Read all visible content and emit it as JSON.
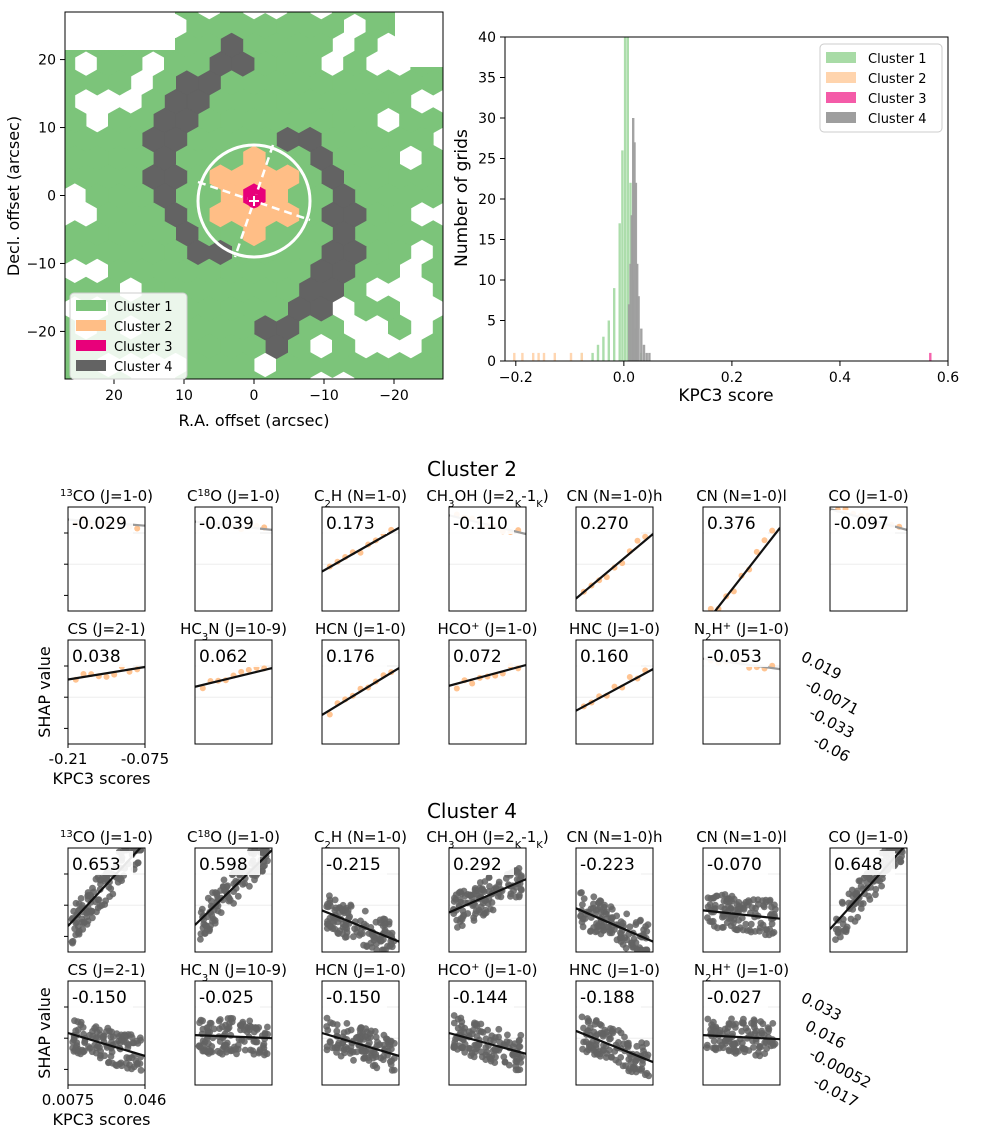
{
  "chart_data": [
    {
      "type": "map",
      "xlabel": "R.A. offset (arcsec)",
      "ylabel": "Decl. offset (arcsec)",
      "xlim": [
        27,
        -27
      ],
      "ylim": [
        -27,
        27
      ],
      "xticks": [
        "20",
        "10",
        "0",
        "−10",
        "−20"
      ],
      "yticks": [
        "20",
        "10",
        "0",
        "−10",
        "−20"
      ],
      "legend": {
        "position": "lower-left",
        "entries": [
          {
            "label": "Cluster 1",
            "color": "#7cc47a"
          },
          {
            "label": "Cluster 2",
            "color": "#ffbe86"
          },
          {
            "label": "Cluster 3",
            "color": "#e8007a"
          },
          {
            "label": "Cluster 4",
            "color": "#636363"
          }
        ]
      }
    },
    {
      "type": "histogram",
      "xlabel": "KPC3 score",
      "ylabel": "Number of grids",
      "xlim": [
        -0.22,
        0.6
      ],
      "ylim": [
        0,
        40
      ],
      "xticks": [
        "−0.2",
        "0.0",
        "0.2",
        "0.4",
        "0.6"
      ],
      "yticks": [
        "0",
        "5",
        "10",
        "15",
        "20",
        "25",
        "30",
        "35",
        "40"
      ],
      "legend": {
        "position": "upper-right",
        "entries": [
          {
            "label": "Cluster 1",
            "color": "#a8dba6"
          },
          {
            "label": "Cluster 2",
            "color": "#ffd4ad"
          },
          {
            "label": "Cluster 3",
            "color": "#f45ba8"
          },
          {
            "label": "Cluster 4",
            "color": "#9e9e9e"
          }
        ]
      },
      "series": [
        {
          "name": "Cluster 1",
          "color": "#a8dba6",
          "bins": [
            [
              -0.08,
              1
            ],
            [
              -0.06,
              1
            ],
            [
              -0.05,
              2
            ],
            [
              -0.04,
              3
            ],
            [
              -0.03,
              5
            ],
            [
              -0.02,
              9
            ],
            [
              -0.01,
              17
            ],
            [
              -0.005,
              26
            ],
            [
              0.0,
              40
            ],
            [
              0.005,
              40
            ],
            [
              0.01,
              22
            ],
            [
              0.015,
              10
            ],
            [
              0.02,
              4
            ],
            [
              0.03,
              1
            ]
          ]
        },
        {
          "name": "Cluster 2",
          "color": "#ffd4ad",
          "bins": [
            [
              -0.205,
              1
            ],
            [
              -0.19,
              1
            ],
            [
              -0.17,
              1
            ],
            [
              -0.16,
              1
            ],
            [
              -0.15,
              1
            ],
            [
              -0.13,
              1
            ],
            [
              -0.1,
              1
            ],
            [
              -0.08,
              1
            ]
          ]
        },
        {
          "name": "Cluster 3",
          "color": "#f45ba8",
          "bins": [
            [
              0.565,
              1
            ]
          ]
        },
        {
          "name": "Cluster 4",
          "color": "#9e9e9e",
          "bins": [
            [
              0.0075,
              7
            ],
            [
              0.01,
              12
            ],
            [
              0.0125,
              18
            ],
            [
              0.015,
              30
            ],
            [
              0.0175,
              27
            ],
            [
              0.02,
              22
            ],
            [
              0.0225,
              12
            ],
            [
              0.025,
              8
            ],
            [
              0.03,
              4
            ],
            [
              0.035,
              2
            ],
            [
              0.04,
              1
            ],
            [
              0.045,
              1
            ]
          ]
        }
      ]
    },
    {
      "type": "scatter-grid",
      "title": "Cluster 2",
      "point_color": "#ffbe86",
      "xlabel": "KPC3 scores",
      "ylabel": "SHAP value",
      "x_ticks": [
        "-0.21",
        "-0.075"
      ],
      "y_ticks_right": [
        "0.019",
        "-0.0071",
        "-0.033",
        "-0.06"
      ],
      "panels": [
        {
          "label": "CO13",
          "value": "-0.029",
          "slope": -0.06,
          "intercept": 0.88
        },
        {
          "label": "C18O",
          "value": "-0.039",
          "slope": -0.08,
          "intercept": 0.86
        },
        {
          "label": "C2H",
          "value": "0.173",
          "slope": 0.42,
          "intercept": 0.38
        },
        {
          "label": "CH3OH",
          "value": "-0.110",
          "slope": -0.18,
          "intercept": 0.92
        },
        {
          "label": "CN (N=1-0)h",
          "value": "0.270",
          "slope": 0.62,
          "intercept": 0.12
        },
        {
          "label": "CN (N=1-0)l",
          "value": "0.376",
          "slope": 0.95,
          "intercept": -0.15
        },
        {
          "label": "CO (J=1-0)",
          "value": "-0.097",
          "slope": -0.2,
          "intercept": 0.98
        },
        {
          "label": "CS (J=2-1)",
          "value": "0.038",
          "slope": 0.12,
          "intercept": 0.62
        },
        {
          "label": "HC3N",
          "value": "0.062",
          "slope": 0.18,
          "intercept": 0.55
        },
        {
          "label": "HCN (J=1-0)",
          "value": "0.176",
          "slope": 0.45,
          "intercept": 0.28
        },
        {
          "label": "HCO+",
          "value": "0.072",
          "slope": 0.2,
          "intercept": 0.56
        },
        {
          "label": "HNC (J=1-0)",
          "value": "0.160",
          "slope": 0.4,
          "intercept": 0.32
        },
        {
          "label": "N2H+",
          "value": "-0.053",
          "slope": -0.1,
          "intercept": 0.82
        }
      ]
    },
    {
      "type": "scatter-grid",
      "title": "Cluster 4",
      "point_color": "#636363",
      "xlabel": "KPC3 scores",
      "ylabel": "SHAP value",
      "x_ticks": [
        "0.0075",
        "0.046"
      ],
      "y_ticks_right": [
        "0.033",
        "0.016",
        "-0.00052",
        "-0.017"
      ],
      "panels": [
        {
          "label": "CO13",
          "value": "0.653",
          "slope": 0.8,
          "intercept": 0.25
        },
        {
          "label": "C18O",
          "value": "0.598",
          "slope": 0.72,
          "intercept": 0.26
        },
        {
          "label": "C2H",
          "value": "-0.215",
          "slope": -0.3,
          "intercept": 0.4
        },
        {
          "label": "CH3OH",
          "value": "0.292",
          "slope": 0.32,
          "intercept": 0.38
        },
        {
          "label": "CN (N=1-0)h",
          "value": "-0.223",
          "slope": -0.32,
          "intercept": 0.42
        },
        {
          "label": "CN (N=1-0)l",
          "value": "-0.070",
          "slope": -0.08,
          "intercept": 0.4
        },
        {
          "label": "CO (J=1-0)",
          "value": "0.648",
          "slope": 0.82,
          "intercept": 0.22
        },
        {
          "label": "CS (J=2-1)",
          "value": "-0.150",
          "slope": -0.22,
          "intercept": 0.5
        },
        {
          "label": "HC3N",
          "value": "-0.025",
          "slope": -0.03,
          "intercept": 0.48
        },
        {
          "label": "HCN (J=1-0)",
          "value": "-0.150",
          "slope": -0.22,
          "intercept": 0.5
        },
        {
          "label": "HCO+",
          "value": "-0.144",
          "slope": -0.2,
          "intercept": 0.5
        },
        {
          "label": "HNC (J=1-0)",
          "value": "-0.188",
          "slope": -0.3,
          "intercept": 0.52
        },
        {
          "label": "N2H+",
          "value": "-0.027",
          "slope": -0.04,
          "intercept": 0.48
        }
      ]
    }
  ]
}
